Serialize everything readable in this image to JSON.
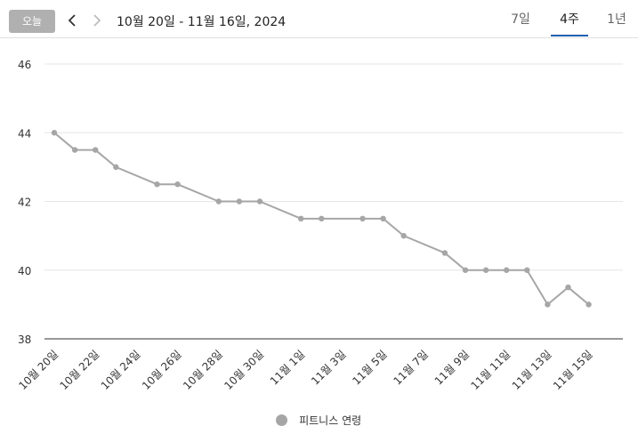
{
  "toolbar": {
    "today_label": "오늘",
    "prev_icon": "chevron-left-icon",
    "next_icon": "chevron-right-icon",
    "date_range": "10월 20일 - 11월 16일, 2024",
    "tabs": [
      {
        "label": "7일",
        "selected": false
      },
      {
        "label": "4주",
        "selected": true
      },
      {
        "label": "1년",
        "selected": false
      }
    ]
  },
  "colors": {
    "series": "#a6a6a6",
    "tab_indicator": "#1a5fb4",
    "today_button_bg": "#b0b0b0"
  },
  "legend": {
    "label": "피트니스 연령"
  },
  "chart_data": {
    "type": "line",
    "ylim": [
      38,
      46
    ],
    "yticks": [
      "38",
      "40",
      "42",
      "44",
      "46"
    ],
    "grid": true,
    "legend_position": "bottom-center",
    "categories": [
      "10월 20일",
      "10월 21일",
      "10월 22일",
      "10월 23일",
      "10월 24일",
      "10월 25일",
      "10월 26일",
      "10월 27일",
      "10월 28일",
      "10월 29일",
      "10월 30일",
      "10월 31일",
      "11월 1일",
      "11월 2일",
      "11월 3일",
      "11월 4일",
      "11월 5일",
      "11월 6일",
      "11월 7일",
      "11월 8일",
      "11월 9일",
      "11월 10일",
      "11월 11일",
      "11월 12일",
      "11월 13일",
      "11월 14일",
      "11월 15일",
      "11월 16일"
    ],
    "xtick_labels": [
      "10월 20일",
      "10월 22일",
      "10월 24일",
      "10월 26일",
      "10월 28일",
      "10월 30일",
      "11월 1일",
      "11월 3일",
      "11월 5일",
      "11월 7일",
      "11월 9일",
      "11월 11일",
      "11월 13일",
      "11월 15일"
    ],
    "series": [
      {
        "name": "피트니스 연령",
        "points": [
          {
            "x": "10월 20일",
            "y": 44
          },
          {
            "x": "10월 21일",
            "y": 43.5
          },
          {
            "x": "10월 22일",
            "y": 43.5
          },
          {
            "x": "10월 23일",
            "y": 43
          },
          {
            "x": "10월 25일",
            "y": 42.5
          },
          {
            "x": "10월 26일",
            "y": 42.5
          },
          {
            "x": "10월 28일",
            "y": 42
          },
          {
            "x": "10월 29일",
            "y": 42
          },
          {
            "x": "10월 30일",
            "y": 42
          },
          {
            "x": "11월 1일",
            "y": 41.5
          },
          {
            "x": "11월 2일",
            "y": 41.5
          },
          {
            "x": "11월 4일",
            "y": 41.5
          },
          {
            "x": "11월 5일",
            "y": 41.5
          },
          {
            "x": "11월 6일",
            "y": 41
          },
          {
            "x": "11월 8일",
            "y": 40.5
          },
          {
            "x": "11월 9일",
            "y": 40
          },
          {
            "x": "11월 10일",
            "y": 40
          },
          {
            "x": "11월 11일",
            "y": 40
          },
          {
            "x": "11월 12일",
            "y": 40
          },
          {
            "x": "11월 13일",
            "y": 39
          },
          {
            "x": "11월 14일",
            "y": 39.5
          },
          {
            "x": "11월 15일",
            "y": 39
          }
        ]
      }
    ]
  }
}
